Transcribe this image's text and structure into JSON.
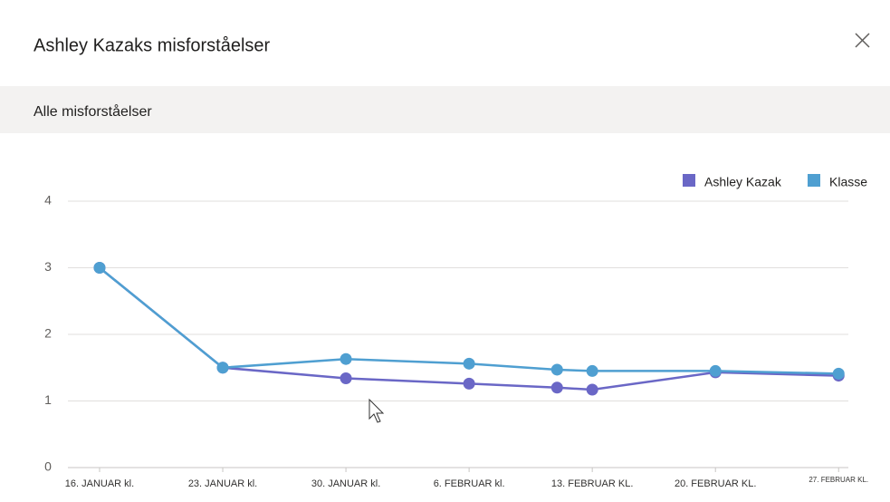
{
  "header": {
    "title": "Ashley Kazaks misforståelser"
  },
  "section": {
    "title": "Alle misforståelser"
  },
  "chart_data": {
    "type": "line",
    "x": [
      16,
      23,
      30,
      37,
      42,
      44,
      51,
      58
    ],
    "series": [
      {
        "name": "Ashley Kazak",
        "color": "#6a67c6",
        "values": [
          3,
          1.5,
          1.34,
          1.26,
          1.2,
          1.17,
          1.43,
          1.38
        ]
      },
      {
        "name": "Klasse",
        "color": "#4f9fd1",
        "values": [
          3,
          1.5,
          1.63,
          1.56,
          1.47,
          1.45,
          1.45,
          1.41
        ]
      }
    ],
    "xlim": [
      14.2,
      58.45
    ],
    "xticks": [
      {
        "value": 16,
        "label": "16. JANUAR kl."
      },
      {
        "value": 23,
        "label": "23. JANUAR kl."
      },
      {
        "value": 30,
        "label": "30. JANUAR kl."
      },
      {
        "value": 37,
        "label": "6. FEBRUAR kl."
      },
      {
        "value": 44,
        "label": "13. FEBRUAR KL."
      },
      {
        "value": 51,
        "label": "20. FEBRUAR KL."
      },
      {
        "value": 58,
        "label": "27. FEBRUAR KL."
      }
    ],
    "ylim": [
      0,
      4
    ],
    "yticks": [
      0,
      1,
      2,
      3,
      4
    ],
    "grid": true,
    "legend": "top-right"
  }
}
